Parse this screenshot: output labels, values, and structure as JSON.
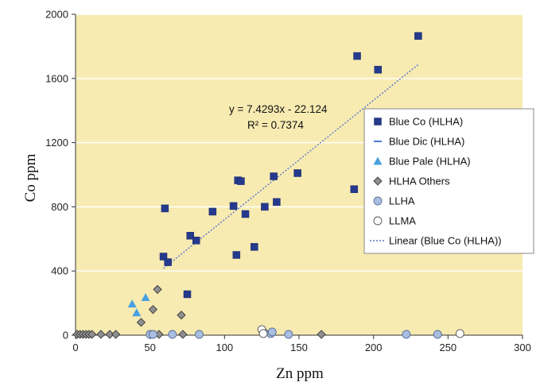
{
  "chart_data": {
    "type": "scatter",
    "xlabel": "Zn ppm",
    "ylabel": "Co ppm",
    "xlim": [
      0,
      300
    ],
    "ylim": [
      0,
      2000
    ],
    "xticks": [
      0,
      50,
      100,
      150,
      200,
      250,
      300
    ],
    "yticks": [
      0,
      400,
      800,
      1200,
      1600,
      2000
    ],
    "plot_background": "#f8ebb2",
    "grid": "horizontal",
    "legend_position": "right",
    "series": [
      {
        "name": "Blue Co (HLHA)",
        "marker": "square",
        "color": "#253a8c",
        "points": [
          [
            59,
            490
          ],
          [
            60,
            790
          ],
          [
            62,
            455
          ],
          [
            75,
            255
          ],
          [
            77,
            620
          ],
          [
            81,
            590
          ],
          [
            92,
            770
          ],
          [
            106,
            805
          ],
          [
            108,
            500
          ],
          [
            109,
            965
          ],
          [
            111,
            960
          ],
          [
            114,
            755
          ],
          [
            120,
            550
          ],
          [
            127,
            800
          ],
          [
            133,
            990
          ],
          [
            135,
            830
          ],
          [
            149,
            1010
          ],
          [
            187,
            910
          ],
          [
            189,
            1740
          ],
          [
            203,
            1655
          ],
          [
            230,
            1865
          ]
        ]
      },
      {
        "name": "Blue Dic (HLHA)",
        "marker": "dash",
        "color": "#4a7fd0",
        "points": []
      },
      {
        "name": "Blue Pale (HLHA)",
        "marker": "triangle",
        "color": "#4aa0e0",
        "points": [
          [
            38,
            195
          ],
          [
            41,
            140
          ],
          [
            47,
            235
          ]
        ]
      },
      {
        "name": "HLHA Others",
        "marker": "diamond",
        "color": "#8f8f8f",
        "points": [
          [
            1,
            5
          ],
          [
            3,
            5
          ],
          [
            5,
            5
          ],
          [
            7,
            5
          ],
          [
            9,
            5
          ],
          [
            11,
            5
          ],
          [
            17,
            5
          ],
          [
            23,
            5
          ],
          [
            27,
            5
          ],
          [
            44,
            80
          ],
          [
            52,
            160
          ],
          [
            55,
            285
          ],
          [
            56,
            5
          ],
          [
            71,
            125
          ],
          [
            72,
            5
          ],
          [
            165,
            5
          ]
        ]
      },
      {
        "name": "LLHA",
        "marker": "circle",
        "color": "#a9bde0",
        "points": [
          [
            50,
            5
          ],
          [
            52,
            5
          ],
          [
            65,
            5
          ],
          [
            83,
            5
          ],
          [
            126,
            20
          ],
          [
            131,
            10
          ],
          [
            132,
            20
          ],
          [
            143,
            5
          ],
          [
            222,
            5
          ],
          [
            243,
            5
          ]
        ]
      },
      {
        "name": "LLMA",
        "marker": "circle-open",
        "color": "#ffffff",
        "points": [
          [
            125,
            35
          ],
          [
            126,
            10
          ],
          [
            258,
            10
          ]
        ]
      }
    ],
    "trendline": {
      "name": "Linear (Blue Co (HLHA))",
      "slope": 7.4293,
      "intercept": -22.124,
      "x_range": [
        59,
        230
      ],
      "color": "#5a76c8",
      "equation": "y = 7.4293x - 22.124",
      "r_squared": "R² = 0.7374"
    }
  }
}
